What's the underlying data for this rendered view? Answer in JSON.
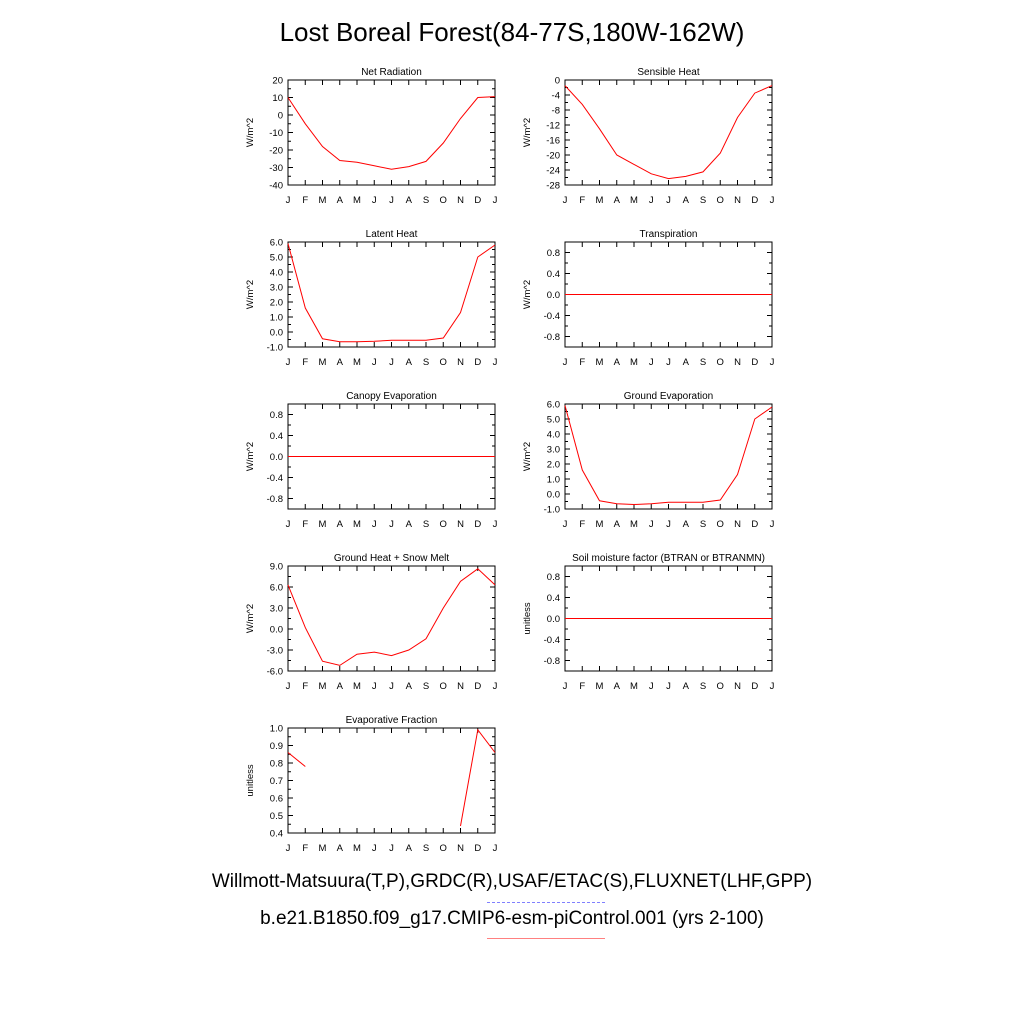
{
  "title": "Lost Boreal Forest(84-77S,180W-162W)",
  "months": [
    "J",
    "F",
    "M",
    "A",
    "M",
    "J",
    "J",
    "A",
    "S",
    "O",
    "N",
    "D",
    "J"
  ],
  "legend": {
    "obs_label": "Willmott-Matsuura(T,P),GRDC(R),USAF/ETAC(S),FLUXNET(LHF,GPP)",
    "obs_color": "#8080ff",
    "model_label": "b.e21.B1850.f09_g17.CMIP6-esm-piControl.001 (yrs 2-100)",
    "model_color": "#ff8080"
  },
  "chart_data": [
    {
      "type": "line",
      "title": "Net Radiation",
      "ylabel": "W/m^2",
      "ylim": [
        -40,
        20
      ],
      "yticks": [
        "20",
        "10",
        "0",
        "-10",
        "-20",
        "-30",
        "-40"
      ],
      "ytick_values": [
        20,
        10,
        0,
        -10,
        -20,
        -30,
        -40
      ],
      "line_color": "#ff0000",
      "values": [
        10,
        -5,
        -18,
        -26,
        -27,
        -29,
        -31,
        -29.5,
        -26.5,
        -16,
        -2,
        10,
        10.5
      ]
    },
    {
      "type": "line",
      "title": "Sensible Heat",
      "ylabel": "W/m^2",
      "ylim": [
        -28,
        0
      ],
      "yticks": [
        "0",
        "-4",
        "-8",
        "-12",
        "-16",
        "-20",
        "-24",
        "-28"
      ],
      "ytick_values": [
        0,
        -4,
        -8,
        -12,
        -16,
        -20,
        -24,
        -28
      ],
      "line_color": "#ff0000",
      "values": [
        -1.5,
        -6.5,
        -13,
        -20,
        -22.5,
        -25,
        -26.3,
        -25.7,
        -24.5,
        -19.5,
        -10,
        -3.5,
        -1.5
      ]
    },
    {
      "type": "line",
      "title": "Latent Heat",
      "ylabel": "W/m^2",
      "ylim": [
        -1,
        6
      ],
      "yticks": [
        "6.0",
        "5.0",
        "4.0",
        "3.0",
        "2.0",
        "1.0",
        "0.0",
        "-1.0"
      ],
      "ytick_values": [
        6,
        5,
        4,
        3,
        2,
        1,
        0,
        -1
      ],
      "line_color": "#ff0000",
      "values": [
        5.9,
        1.6,
        -0.45,
        -0.65,
        -0.65,
        -0.62,
        -0.55,
        -0.55,
        -0.55,
        -0.4,
        1.3,
        5.0,
        5.8
      ]
    },
    {
      "type": "line",
      "title": "Transpiration",
      "ylabel": "W/m^2",
      "ylim": [
        -1,
        1
      ],
      "yticks": [
        "0.8",
        "0.4",
        "0.0",
        "-0.4",
        "-0.8"
      ],
      "ytick_values": [
        0.8,
        0.4,
        0,
        -0.4,
        -0.8
      ],
      "line_color": "#ff0000",
      "values": [
        0,
        0,
        0,
        0,
        0,
        0,
        0,
        0,
        0,
        0,
        0,
        0,
        0
      ]
    },
    {
      "type": "line",
      "title": "Canopy Evaporation",
      "ylabel": "W/m^2",
      "ylim": [
        -1,
        1
      ],
      "yticks": [
        "0.8",
        "0.4",
        "0.0",
        "-0.4",
        "-0.8"
      ],
      "ytick_values": [
        0.8,
        0.4,
        0,
        -0.4,
        -0.8
      ],
      "line_color": "#ff0000",
      "values": [
        0,
        0,
        0,
        0,
        0,
        0,
        0,
        0,
        0,
        0,
        0,
        0,
        0
      ]
    },
    {
      "type": "line",
      "title": "Ground Evaporation",
      "ylabel": "W/m^2",
      "ylim": [
        -1,
        6
      ],
      "yticks": [
        "6.0",
        "5.0",
        "4.0",
        "3.0",
        "2.0",
        "1.0",
        "0.0",
        "-1.0"
      ],
      "ytick_values": [
        6,
        5,
        4,
        3,
        2,
        1,
        0,
        -1
      ],
      "line_color": "#ff0000",
      "values": [
        5.9,
        1.6,
        -0.45,
        -0.65,
        -0.7,
        -0.65,
        -0.55,
        -0.55,
        -0.55,
        -0.4,
        1.3,
        5.0,
        5.8
      ]
    },
    {
      "type": "line",
      "title": "Ground Heat + Snow Melt",
      "ylabel": "W/m^2",
      "ylim": [
        -6,
        9
      ],
      "yticks": [
        "9.0",
        "6.0",
        "3.0",
        "0.0",
        "-3.0",
        "-6.0"
      ],
      "ytick_values": [
        9,
        6,
        3,
        0,
        -3,
        -6
      ],
      "line_color": "#ff0000",
      "values": [
        6.3,
        0.2,
        -4.6,
        -5.2,
        -3.6,
        -3.3,
        -3.8,
        -3.0,
        -1.4,
        3.0,
        6.8,
        8.6,
        6.3
      ]
    },
    {
      "type": "line",
      "title": "Soil moisture factor (BTRAN or BTRANMN)",
      "ylabel": "unitless",
      "ylim": [
        -1,
        1
      ],
      "yticks": [
        "0.8",
        "0.4",
        "0.0",
        "-0.4",
        "-0.8"
      ],
      "ytick_values": [
        0.8,
        0.4,
        0,
        -0.4,
        -0.8
      ],
      "line_color": "#ff0000",
      "values": [
        0,
        0,
        0,
        0,
        0,
        0,
        0,
        0,
        0,
        0,
        0,
        0,
        0
      ]
    },
    {
      "type": "line",
      "title": "Evaporative Fraction",
      "ylabel": "unitless",
      "ylim": [
        0.4,
        1.0
      ],
      "yticks": [
        "1.0",
        "0.9",
        "0.8",
        "0.7",
        "0.6",
        "0.5",
        "0.4"
      ],
      "ytick_values": [
        1.0,
        0.9,
        0.8,
        0.7,
        0.6,
        0.5,
        0.4
      ],
      "line_color": "#ff0000",
      "values": [
        0.86,
        0.78,
        null,
        null,
        null,
        null,
        null,
        null,
        null,
        null,
        0.44,
        0.99,
        0.86
      ]
    }
  ]
}
